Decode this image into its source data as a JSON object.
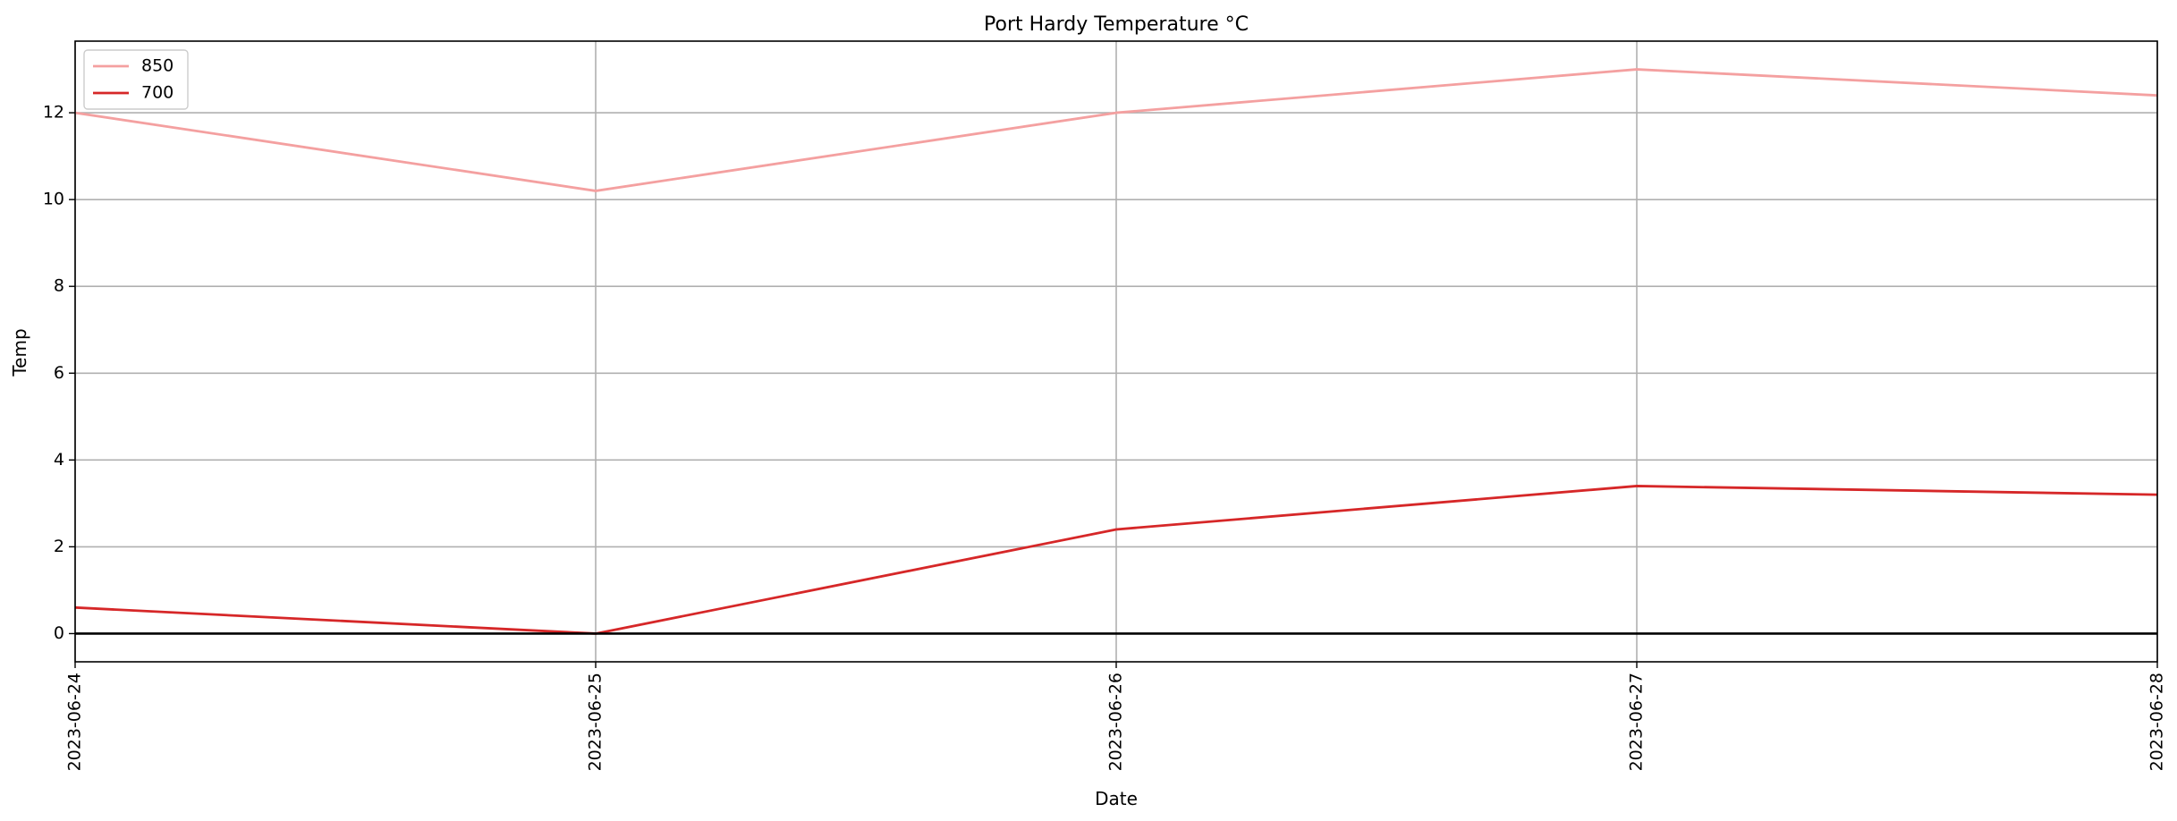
{
  "chart_data": {
    "type": "line",
    "title": "Port Hardy Temperature °C",
    "xlabel": "Date",
    "ylabel": "Temp",
    "x": [
      "2023-06-24",
      "2023-06-25",
      "2023-06-26",
      "2023-06-27",
      "2023-06-28"
    ],
    "series": [
      {
        "name": "850",
        "values": [
          12.0,
          10.2,
          12.0,
          13.0,
          12.4
        ],
        "color": "#f4a0a0"
      },
      {
        "name": "700",
        "values": [
          0.6,
          0.0,
          2.4,
          3.4,
          3.2
        ],
        "color": "#d62728"
      }
    ],
    "ylim": [
      -0.65,
      13.65
    ],
    "yticks": [
      0,
      2,
      4,
      6,
      8,
      10,
      12
    ],
    "grid": true,
    "zero_line": true,
    "legend_position": "top-left"
  }
}
